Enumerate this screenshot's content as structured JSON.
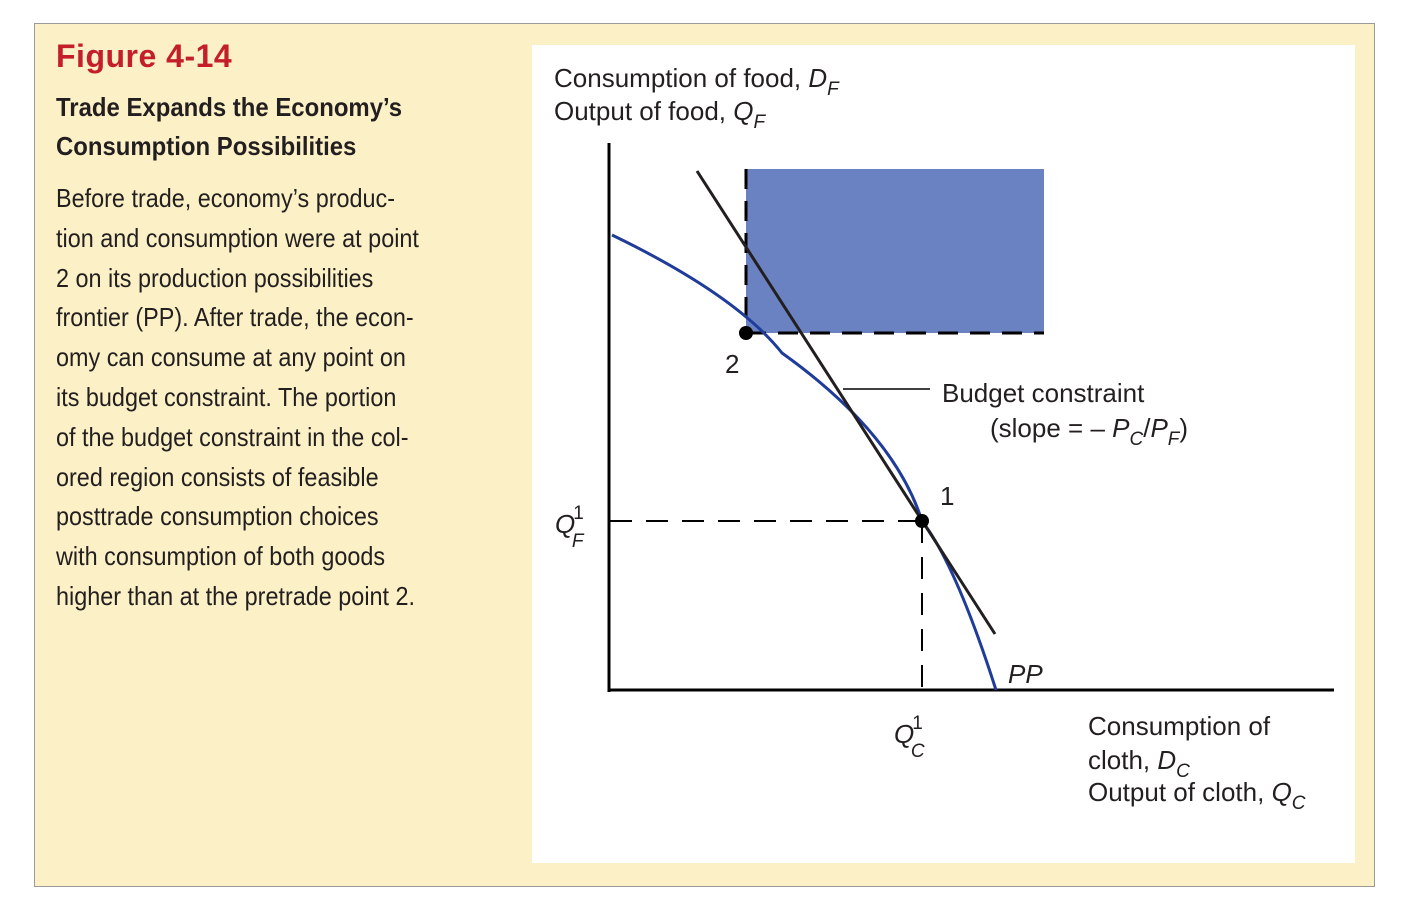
{
  "figure": {
    "number": "Figure 4-14",
    "title_lines": [
      "Trade Expands the Economy’s",
      "Consumption Possibilities"
    ],
    "body_lines": [
      "Before trade, economy’s produc-",
      "tion and consumption were at point",
      "2 on its production possibilities",
      "frontier (PP). After trade, the econ-",
      "omy can consume at any point on",
      "its budget constraint. The portion",
      "of the budget constraint in the col-",
      "ored region consists of feasible",
      "posttrade consumption choices",
      "with consumption of both goods",
      "higher than at the pretrade point 2."
    ]
  },
  "diagram": {
    "y_axis": {
      "line1": "Consumption of food, ",
      "line1_var": "D",
      "line1_sub": "F",
      "line2": "Output of food, ",
      "line2_var": "Q",
      "line2_sub": "F"
    },
    "x_axis": {
      "line1": "Consumption of",
      "line2": "cloth, ",
      "line2_var": "D",
      "line2_sub": "C",
      "line3": "Output of cloth, ",
      "line3_var": "Q",
      "line3_sub": "C"
    },
    "budget_label": "Budget constraint",
    "slope_prefix": "(slope = – ",
    "slope_p1": "P",
    "slope_p1_sub": "C",
    "slope_slash": "/",
    "slope_p2": "P",
    "slope_p2_sub": "F",
    "slope_suffix": ")",
    "point1_label": "1",
    "point2_label": "2",
    "pp_label": "PP",
    "qf_var": "Q",
    "qf_sup": "1",
    "qf_sub": "F",
    "qc_var": "Q",
    "qc_sup": "1",
    "qc_sub": "C",
    "colors": {
      "background": "#fcf1c6",
      "figure_number": "#c41e2a",
      "region_fill": "#6b82c2",
      "pp_curve": "#1f3c9a",
      "budget_line": "#231f20"
    }
  }
}
